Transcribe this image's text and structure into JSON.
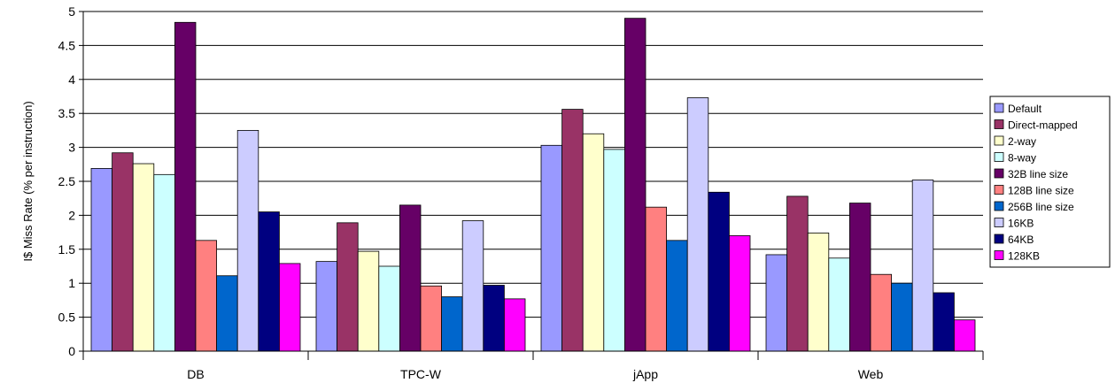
{
  "chart_data": {
    "type": "bar",
    "title": "",
    "xlabel": "",
    "ylabel": "I$ Miss Rate (% per instruction)",
    "ylim": [
      0,
      5
    ],
    "yticks": [
      "0",
      "0.5",
      "1",
      "1.5",
      "2",
      "2.5",
      "3",
      "3.5",
      "4",
      "4.5",
      "5"
    ],
    "grid": true,
    "legend_position": "right",
    "categories": [
      "DB",
      "TPC-W",
      "jApp",
      "Web"
    ],
    "series": [
      {
        "name": "Default",
        "color": "#9999ff",
        "values": [
          2.69,
          1.32,
          3.03,
          1.42
        ]
      },
      {
        "name": "Direct-mapped",
        "color": "#993366",
        "values": [
          2.92,
          1.89,
          3.56,
          2.28
        ]
      },
      {
        "name": "2-way",
        "color": "#ffffcc",
        "values": [
          2.76,
          1.47,
          3.2,
          1.74
        ]
      },
      {
        "name": "8-way",
        "color": "#ccffff",
        "values": [
          2.6,
          1.25,
          2.97,
          1.37
        ]
      },
      {
        "name": "32B line size",
        "color": "#660066",
        "values": [
          4.84,
          2.15,
          4.9,
          2.18
        ]
      },
      {
        "name": "128B line size",
        "color": "#ff8080",
        "values": [
          1.63,
          0.96,
          2.12,
          1.13
        ]
      },
      {
        "name": "256B line size",
        "color": "#0066cc",
        "values": [
          1.11,
          0.8,
          1.63,
          1.0
        ]
      },
      {
        "name": "16KB",
        "color": "#ccccff",
        "values": [
          3.25,
          1.92,
          3.73,
          2.52
        ]
      },
      {
        "name": "64KB",
        "color": "#000080",
        "values": [
          2.05,
          0.97,
          2.34,
          0.86
        ]
      },
      {
        "name": "128KB",
        "color": "#ff00ff",
        "values": [
          1.29,
          0.77,
          1.7,
          0.46
        ]
      }
    ]
  }
}
